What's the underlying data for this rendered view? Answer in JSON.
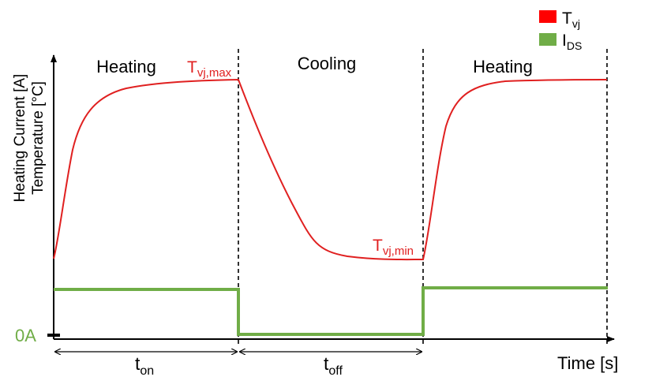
{
  "legend": {
    "items": [
      {
        "main": "T",
        "sub": "vj",
        "color": "#ff0000"
      },
      {
        "main": "I",
        "sub": "DS",
        "color": "#70ad47"
      }
    ]
  },
  "axes": {
    "ylabel_line1": "Heating Current [A]",
    "ylabel_line2": "Temperature [°C]",
    "xlabel": "Time [s]",
    "zero_current_label": "0A"
  },
  "phases": [
    {
      "label": "Heating"
    },
    {
      "label": "Cooling"
    },
    {
      "label": "Heating"
    }
  ],
  "annotations": {
    "tvj_max": {
      "main": "T",
      "sub": "vj,max"
    },
    "tvj_min": {
      "main": "T",
      "sub": "vj,min"
    }
  },
  "durations": {
    "t_on": {
      "main": "t",
      "sub": "on"
    },
    "t_off": {
      "main": "t",
      "sub": "off"
    }
  },
  "colors": {
    "temperature": "#e02020",
    "current": "#70ad47",
    "zero_label": "#70ad47",
    "axis": "#000000"
  }
}
